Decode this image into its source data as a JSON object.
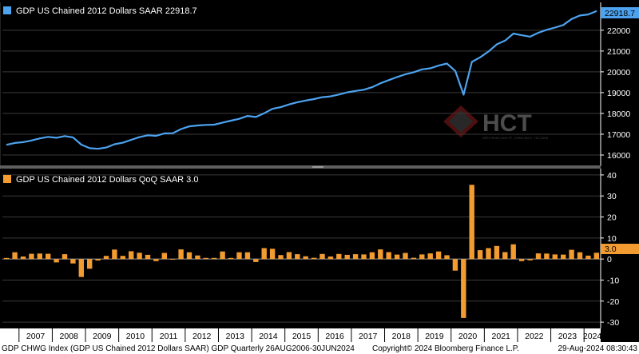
{
  "colors": {
    "background": "#000000",
    "gdp_line": "#4da3f0",
    "qoq_bar": "#f29b30",
    "grid": "#3a3a3a",
    "axis": "#ffffff",
    "divider": "#6a6a6a",
    "footer_bg": "#ffffff"
  },
  "watermark": {
    "text": "HCT",
    "subtext": "MIỀN TRUNG KINH TẾ - CHÍNH SÁCH - TÀI CHÍNH",
    "icon": "hct-diamond-logo-icon"
  },
  "footer": {
    "left": "GDP CHWG Index (GDP US Chained 2012 Dollars SAAR) GDP  Quarterly 26AUG2006-30JUN2024",
    "middle": "Copyright© 2024 Bloomberg Finance L.P.",
    "right": "29-Aug-2024 08:30:43"
  },
  "chart_data": [
    {
      "type": "line",
      "legend": "GDP US Chained 2012 Dollars SAAR 22918.7",
      "last_value_label": "22918.7",
      "ylim": [
        15500,
        23300
      ],
      "yticks": [
        "16000",
        "17000",
        "18000",
        "19000",
        "20000",
        "21000",
        "22000"
      ],
      "ytick_values": [
        16000,
        17000,
        18000,
        19000,
        20000,
        21000,
        22000
      ],
      "grid": true,
      "x": [
        "2006Q3",
        "2006Q4",
        "2007Q1",
        "2007Q2",
        "2007Q3",
        "2007Q4",
        "2008Q1",
        "2008Q2",
        "2008Q3",
        "2008Q4",
        "2009Q1",
        "2009Q2",
        "2009Q3",
        "2009Q4",
        "2010Q1",
        "2010Q2",
        "2010Q3",
        "2010Q4",
        "2011Q1",
        "2011Q2",
        "2011Q3",
        "2011Q4",
        "2012Q1",
        "2012Q2",
        "2012Q3",
        "2012Q4",
        "2013Q1",
        "2013Q2",
        "2013Q3",
        "2013Q4",
        "2014Q1",
        "2014Q2",
        "2014Q3",
        "2014Q4",
        "2015Q1",
        "2015Q2",
        "2015Q3",
        "2015Q4",
        "2016Q1",
        "2016Q2",
        "2016Q3",
        "2016Q4",
        "2017Q1",
        "2017Q2",
        "2017Q3",
        "2017Q4",
        "2018Q1",
        "2018Q2",
        "2018Q3",
        "2018Q4",
        "2019Q1",
        "2019Q2",
        "2019Q3",
        "2019Q4",
        "2020Q1",
        "2020Q2",
        "2020Q3",
        "2020Q4",
        "2021Q1",
        "2021Q2",
        "2021Q3",
        "2021Q4",
        "2022Q1",
        "2022Q2",
        "2022Q3",
        "2022Q4",
        "2023Q1",
        "2023Q2",
        "2023Q3",
        "2023Q4",
        "2024Q1",
        "2024Q2"
      ],
      "values": [
        16490,
        16580,
        16620,
        16700,
        16800,
        16870,
        16830,
        16910,
        16850,
        16500,
        16330,
        16300,
        16360,
        16520,
        16590,
        16730,
        16860,
        16950,
        16920,
        17040,
        17050,
        17250,
        17380,
        17420,
        17450,
        17460,
        17560,
        17650,
        17740,
        17880,
        17830,
        18010,
        18220,
        18300,
        18430,
        18540,
        18620,
        18690,
        18780,
        18820,
        18910,
        19010,
        19080,
        19140,
        19260,
        19450,
        19600,
        19750,
        19880,
        19980,
        20120,
        20170,
        20300,
        20400,
        20040,
        18900,
        20480,
        20700,
        20980,
        21320,
        21500,
        21840,
        21760,
        21690,
        21880,
        22020,
        22130,
        22250,
        22540,
        22710,
        22760,
        22918.7
      ]
    },
    {
      "type": "bar",
      "legend": "GDP US Chained 2012 Dollars QoQ SAAR 3.0",
      "last_value_label": "3.0",
      "ylim": [
        -33,
        43
      ],
      "yticks": [
        "40",
        "30",
        "20",
        "10",
        "0",
        "-10",
        "-20",
        "-30"
      ],
      "ytick_values": [
        40,
        30,
        20,
        10,
        0,
        -10,
        -20,
        -30
      ],
      "grid": true,
      "x": [
        "2006Q3",
        "2006Q4",
        "2007Q1",
        "2007Q2",
        "2007Q3",
        "2007Q4",
        "2008Q1",
        "2008Q2",
        "2008Q3",
        "2008Q4",
        "2009Q1",
        "2009Q2",
        "2009Q3",
        "2009Q4",
        "2010Q1",
        "2010Q2",
        "2010Q3",
        "2010Q4",
        "2011Q1",
        "2011Q2",
        "2011Q3",
        "2011Q4",
        "2012Q1",
        "2012Q2",
        "2012Q3",
        "2012Q4",
        "2013Q1",
        "2013Q2",
        "2013Q3",
        "2013Q4",
        "2014Q1",
        "2014Q2",
        "2014Q3",
        "2014Q4",
        "2015Q1",
        "2015Q2",
        "2015Q3",
        "2015Q4",
        "2016Q1",
        "2016Q2",
        "2016Q3",
        "2016Q4",
        "2017Q1",
        "2017Q2",
        "2017Q3",
        "2017Q4",
        "2018Q1",
        "2018Q2",
        "2018Q3",
        "2018Q4",
        "2019Q1",
        "2019Q2",
        "2019Q3",
        "2019Q4",
        "2020Q1",
        "2020Q2",
        "2020Q3",
        "2020Q4",
        "2021Q1",
        "2021Q2",
        "2021Q3",
        "2021Q4",
        "2022Q1",
        "2022Q2",
        "2022Q3",
        "2022Q4",
        "2023Q1",
        "2023Q2",
        "2023Q3",
        "2023Q4",
        "2024Q1",
        "2024Q2"
      ],
      "values": [
        0.5,
        3.2,
        1.2,
        2.5,
        2.6,
        2.5,
        -1.6,
        2.3,
        -2.1,
        -8.5,
        -4.6,
        -0.7,
        1.5,
        4.5,
        1.5,
        3.7,
        3.0,
        2.0,
        -1.0,
        2.9,
        -0.1,
        4.6,
        3.2,
        1.7,
        0.5,
        0.5,
        3.6,
        0.5,
        3.2,
        3.2,
        -1.4,
        5.2,
        4.9,
        1.9,
        3.3,
        2.3,
        1.3,
        0.6,
        2.4,
        1.2,
        2.4,
        2.0,
        2.3,
        2.2,
        3.2,
        4.6,
        3.3,
        2.1,
        2.9,
        0.6,
        2.2,
        2.7,
        3.6,
        1.8,
        -5.5,
        -28.0,
        35.3,
        4.2,
        5.2,
        6.2,
        3.3,
        7.0,
        -1.0,
        -0.6,
        2.7,
        2.6,
        2.2,
        2.1,
        4.4,
        3.2,
        1.6,
        3.0
      ]
    }
  ],
  "x_axis": {
    "years": [
      "2007",
      "2008",
      "2009",
      "2010",
      "2011",
      "2012",
      "2013",
      "2014",
      "2015",
      "2016",
      "2017",
      "2018",
      "2019",
      "2020",
      "2021",
      "2022",
      "2023",
      "2024"
    ]
  }
}
